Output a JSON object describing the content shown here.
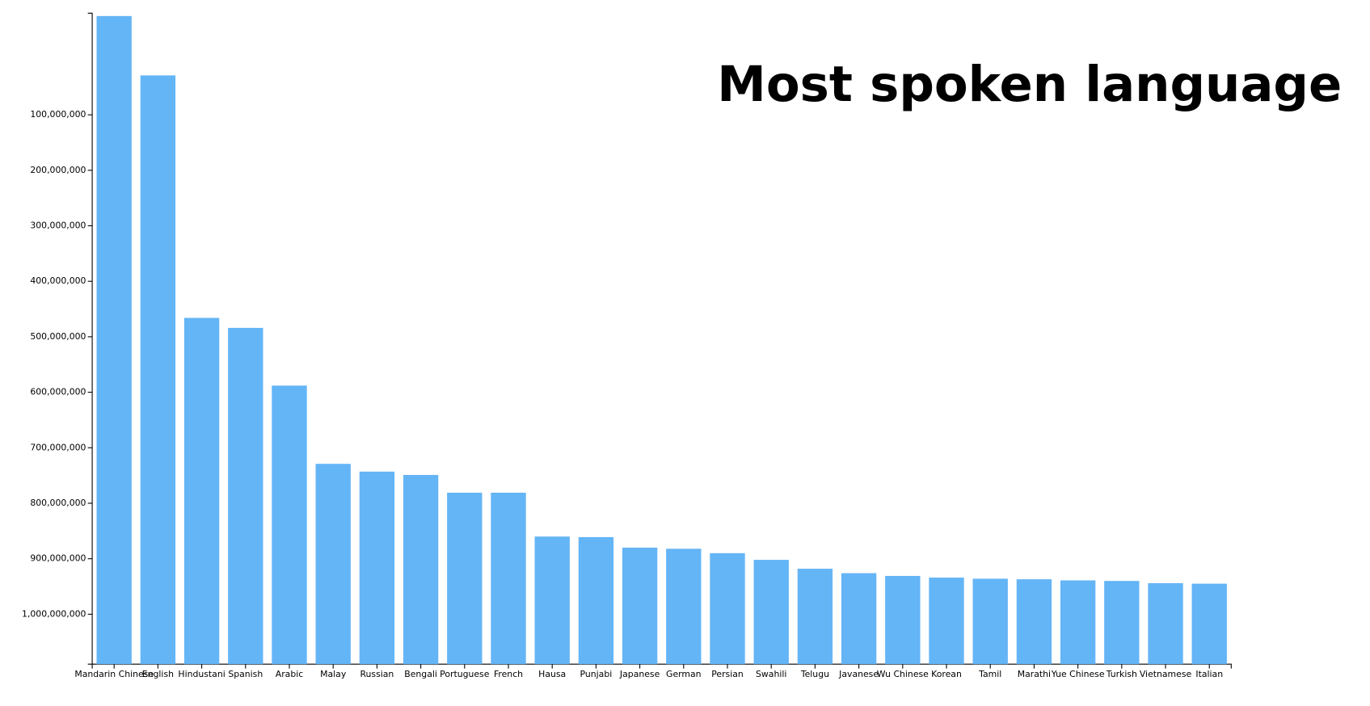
{
  "chart_data": {
    "type": "bar",
    "title": "Most spoken language",
    "categories": [
      "Mandarin Chinese",
      "English",
      "Hindustani",
      "Spanish",
      "Arabic",
      "Malay",
      "Russian",
      "Bengali",
      "Portuguese",
      "French",
      "Hausa",
      "Punjabi",
      "Japanese",
      "German",
      "Persian",
      "Swahili",
      "Telugu",
      "Javanese",
      "Wu Chinese",
      "Korean",
      "Tamil",
      "Marathi",
      "Yue Chinese",
      "Turkish",
      "Vietnamese",
      "Italian"
    ],
    "values": [
      -78000000,
      29000000,
      466000000,
      484000000,
      588000000,
      729000000,
      743000000,
      749000000,
      781000000,
      781000000,
      860000000,
      861000000,
      880000000,
      882000000,
      890000000,
      902000000,
      918000000,
      926000000,
      931000000,
      934000000,
      936000000,
      937000000,
      939000000,
      940000000,
      944000000,
      945000000
    ],
    "color": "#64b5f6",
    "ylim": [
      1090000000,
      -80000000
    ],
    "yticks": [
      {
        "value": 100000000,
        "label": "100,000,000"
      },
      {
        "value": 200000000,
        "label": "200,000,000"
      },
      {
        "value": 300000000,
        "label": "300,000,000"
      },
      {
        "value": 400000000,
        "label": "400,000,000"
      },
      {
        "value": 500000000,
        "label": "500,000,000"
      },
      {
        "value": 600000000,
        "label": "600,000,000"
      },
      {
        "value": 700000000,
        "label": "700,000,000"
      },
      {
        "value": 800000000,
        "label": "800,000,000"
      },
      {
        "value": 900000000,
        "label": "900,000,000"
      },
      {
        "value": 1000000000,
        "label": "1,000,000,000"
      }
    ],
    "grid": false
  }
}
